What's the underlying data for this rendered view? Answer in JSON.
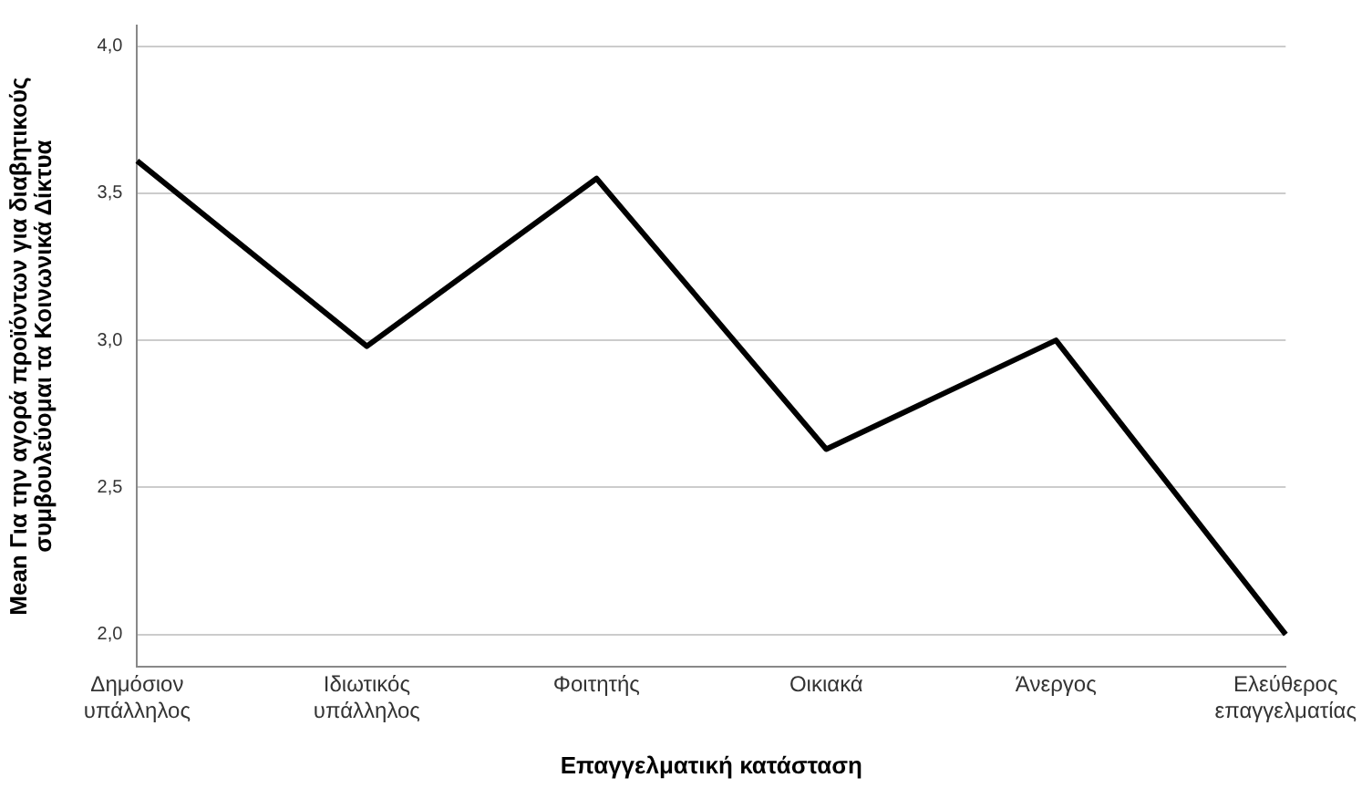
{
  "chart_data": {
    "type": "line",
    "xlabel": "Επαγγελματική κατάσταση",
    "ylabel": "Mean Για την αγορά προϊόντων για διαβητικούς συμβουλεύομαι τα Κοινωνικά Δίκτυα",
    "categories": [
      [
        "Δημόσιον",
        "υπάλληλος"
      ],
      [
        "Ιδιωτικός",
        "υπάλληλος"
      ],
      [
        "Φοιτητής"
      ],
      [
        "Οικιακά"
      ],
      [
        "Άνεργος"
      ],
      [
        "Ελεύθερος",
        "επαγγελματίας"
      ]
    ],
    "series": [
      {
        "color": "#000000",
        "values": [
          3.61,
          2.98,
          3.55,
          2.63,
          3.0,
          2.0
        ]
      }
    ],
    "ylim": [
      1.89,
      4.07
    ],
    "yticks": [
      {
        "value": 2,
        "label": "2,0"
      },
      {
        "value": 2.5,
        "label": "2,5"
      },
      {
        "value": 3,
        "label": "3,0"
      },
      {
        "value": 3.5,
        "label": "3,5"
      },
      {
        "value": 4,
        "label": "4,0"
      }
    ],
    "grid": "y",
    "legend": false,
    "marker": "none",
    "line_style": "solid"
  }
}
